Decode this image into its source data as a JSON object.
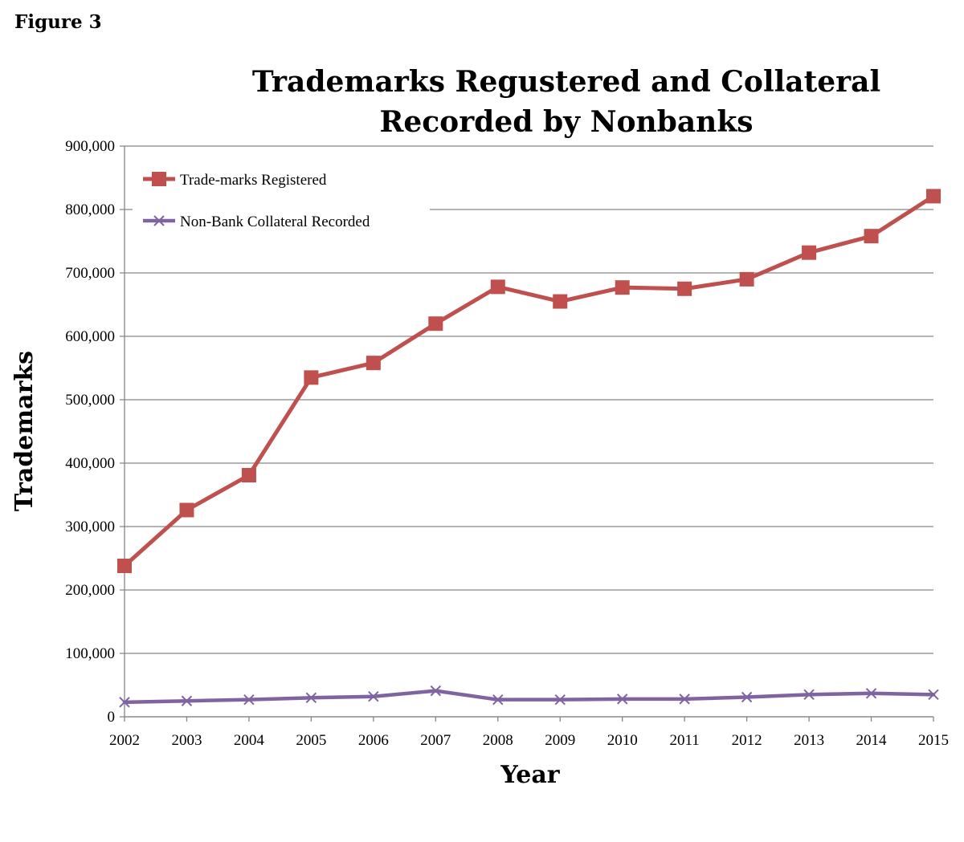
{
  "figure_label": "Figure 3",
  "colors": {
    "series1": "#c0504d",
    "series2": "#8064a2",
    "grid": "#868686"
  },
  "chart_data": {
    "type": "line",
    "title_lines": [
      "Trademarks Regustered and Collateral",
      "Recorded by Nonbanks"
    ],
    "xlabel": "Year",
    "ylabel": "Trademarks",
    "categories": [
      "2002",
      "2003",
      "2004",
      "2005",
      "2006",
      "2007",
      "2008",
      "2009",
      "2010",
      "2011",
      "2012",
      "2013",
      "2014",
      "2015"
    ],
    "ylim": [
      0,
      900000
    ],
    "yticks": [
      0,
      100000,
      200000,
      300000,
      400000,
      500000,
      600000,
      700000,
      800000,
      900000
    ],
    "ytick_labels": [
      "0",
      "100,000",
      "200,000",
      "300,000",
      "400,000",
      "500,000",
      "600,000",
      "700,000",
      "800,000",
      "900,000"
    ],
    "legend_position": "top-left",
    "series": [
      {
        "name": "Trade-marks Registered",
        "marker": "square",
        "values": [
          238000,
          326000,
          381000,
          535000,
          558000,
          620000,
          678000,
          655000,
          677000,
          675000,
          690000,
          732000,
          758000,
          821000
        ]
      },
      {
        "name": "Non-Bank Collateral Recorded",
        "marker": "x",
        "values": [
          23000,
          25000,
          27000,
          30000,
          32000,
          41000,
          27000,
          27000,
          28000,
          28000,
          31000,
          35000,
          37000,
          35000
        ]
      }
    ]
  }
}
